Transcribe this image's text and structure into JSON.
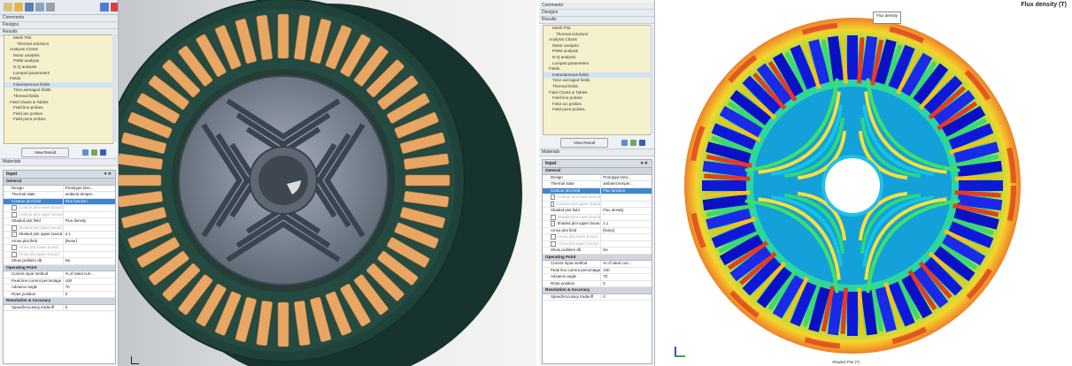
{
  "left_panel": {
    "headers": [
      "Comments",
      "Designs",
      "Results"
    ],
    "tree_items": [
      {
        "label": "Mesh Plot",
        "indent": 2
      },
      {
        "label": "Thermal solutions",
        "indent": 3
      },
      {
        "label": "Analysis Charts",
        "indent": 1
      },
      {
        "label": "Motor analysis",
        "indent": 2
      },
      {
        "label": "PWM analysis",
        "indent": 2
      },
      {
        "label": "D-Q analysis",
        "indent": 2
      },
      {
        "label": "Lumped parameters",
        "indent": 2
      },
      {
        "label": "Fields",
        "indent": 1
      },
      {
        "label": "Instantaneous fields",
        "indent": 2
      },
      {
        "label": "Time averaged fields",
        "indent": 2
      },
      {
        "label": "Thermal fields",
        "indent": 2
      },
      {
        "label": "Field Charts & Tables",
        "indent": 1
      },
      {
        "label": "Field line probes",
        "indent": 2
      },
      {
        "label": "Field arc probes",
        "indent": 2
      },
      {
        "label": "Field point probes",
        "indent": 2
      }
    ],
    "view_result_label": "View Result",
    "materials_label": "Materials",
    "input_title": "Input",
    "input_controls": "▾ ✕",
    "sections": {
      "general": "General",
      "operating": "Operating Point",
      "resolution": "Resolution & Accuracy"
    },
    "general_rows": [
      {
        "key": "Design",
        "value": "Prototype Des...",
        "style": ""
      },
      {
        "key": "Thermal state",
        "value": "ambient temper...",
        "style": ""
      },
      {
        "key": "Contour plot field",
        "value": "Flux function",
        "style": "hl"
      },
      {
        "key": "Contour plot lower bound",
        "value": "",
        "style": "dim",
        "cb": "empty"
      },
      {
        "key": "Contour plot upper bound",
        "value": "",
        "style": "dim",
        "cb": "empty"
      },
      {
        "key": "Shaded plot field",
        "value": "Flux density",
        "style": ""
      },
      {
        "key": "Shaded plot lower bound",
        "value": "",
        "style": "dim",
        "cb": "empty"
      },
      {
        "key": "Shaded plot upper bound",
        "value": "2.1",
        "style": "",
        "cb": "checked"
      },
      {
        "key": "Arrow plot field",
        "value": "[None]",
        "style": ""
      },
      {
        "key": "Arrow plot lower bound",
        "value": "",
        "style": "dim",
        "cb": "empty"
      },
      {
        "key": "Arrow plot upper bound",
        "value": "",
        "style": "dim",
        "cb": "empty"
      },
      {
        "key": "Show problem db",
        "value": "No",
        "style": ""
      }
    ],
    "operating_rows": [
      {
        "key": "Current input method",
        "value": "% of rated curr...",
        "style": ""
      },
      {
        "key": "Peak line current percentage",
        "value": "100",
        "style": ""
      },
      {
        "key": "Advance angle",
        "value": "70",
        "style": ""
      },
      {
        "key": "Rotor position",
        "value": "0",
        "style": ""
      }
    ],
    "resolution_rows": [
      {
        "key": "Speed/Accuracy tradeoff",
        "value": "0",
        "style": ""
      }
    ]
  },
  "right_panel": {
    "plot_title": "Flux density (T)",
    "tooltip": "Flux density",
    "footer_label": "Shaded Plot (T)"
  },
  "colors": {
    "stator_dark": "#1e3f37",
    "copper": "#e8a664",
    "rotor_gray": "#8b94a2",
    "accent_blue": "#3f86d0",
    "tree_bg": "#f6f1cd"
  }
}
